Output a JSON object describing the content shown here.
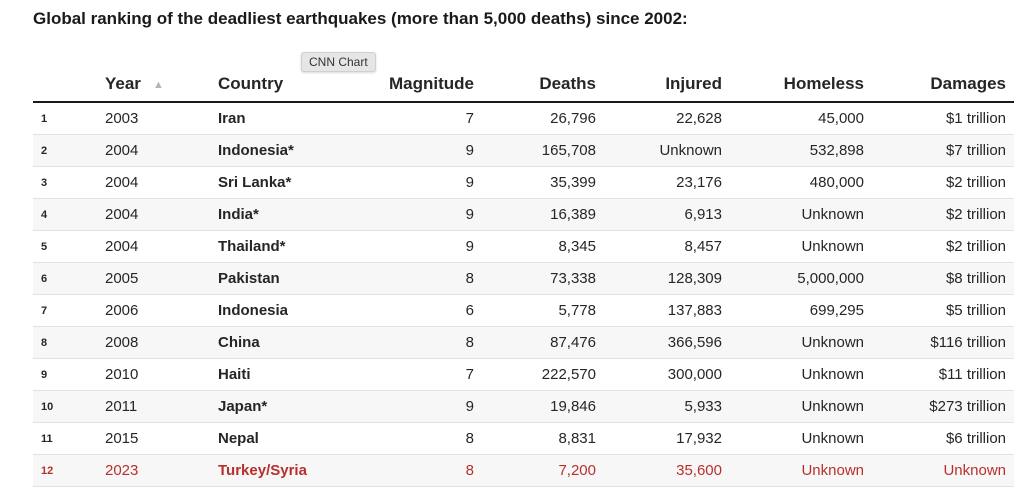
{
  "title": "Global ranking of the deadliest earthquakes (more than 5,000 deaths) since 2002:",
  "tooltip": "CNN Chart",
  "colors": {
    "highlight": "#b8302c",
    "text": "#262626",
    "stripe": "#f7f7f7"
  },
  "chart_data": {
    "type": "table",
    "columns": [
      "",
      "Year",
      "Country",
      "Magnitude",
      "Deaths",
      "Injured",
      "Homeless",
      "Damages"
    ],
    "sort": {
      "column": "Year",
      "direction": "ascending"
    },
    "highlight_row": 12,
    "rows": [
      [
        "1",
        "2003",
        "Iran",
        "7",
        "26,796",
        "22,628",
        "45,000",
        "$1 trillion"
      ],
      [
        "2",
        "2004",
        "Indonesia*",
        "9",
        "165,708",
        "Unknown",
        "532,898",
        "$7 trillion"
      ],
      [
        "3",
        "2004",
        "Sri Lanka*",
        "9",
        "35,399",
        "23,176",
        "480,000",
        "$2 trillion"
      ],
      [
        "4",
        "2004",
        "India*",
        "9",
        "16,389",
        "6,913",
        "Unknown",
        "$2 trillion"
      ],
      [
        "5",
        "2004",
        "Thailand*",
        "9",
        "8,345",
        "8,457",
        "Unknown",
        "$2 trillion"
      ],
      [
        "6",
        "2005",
        "Pakistan",
        "8",
        "73,338",
        "128,309",
        "5,000,000",
        "$8 trillion"
      ],
      [
        "7",
        "2006",
        "Indonesia",
        "6",
        "5,778",
        "137,883",
        "699,295",
        "$5 trillion"
      ],
      [
        "8",
        "2008",
        "China",
        "8",
        "87,476",
        "366,596",
        "Unknown",
        "$116 trillion"
      ],
      [
        "9",
        "2010",
        "Haiti",
        "7",
        "222,570",
        "300,000",
        "Unknown",
        "$11 trillion"
      ],
      [
        "10",
        "2011",
        "Japan*",
        "9",
        "19,846",
        "5,933",
        "Unknown",
        "$273 trillion"
      ],
      [
        "11",
        "2015",
        "Nepal",
        "8",
        "8,831",
        "17,932",
        "Unknown",
        "$6 trillion"
      ],
      [
        "12",
        "2023",
        "Turkey/Syria",
        "8",
        "7,200",
        "35,600",
        "Unknown",
        "Unknown"
      ]
    ]
  }
}
